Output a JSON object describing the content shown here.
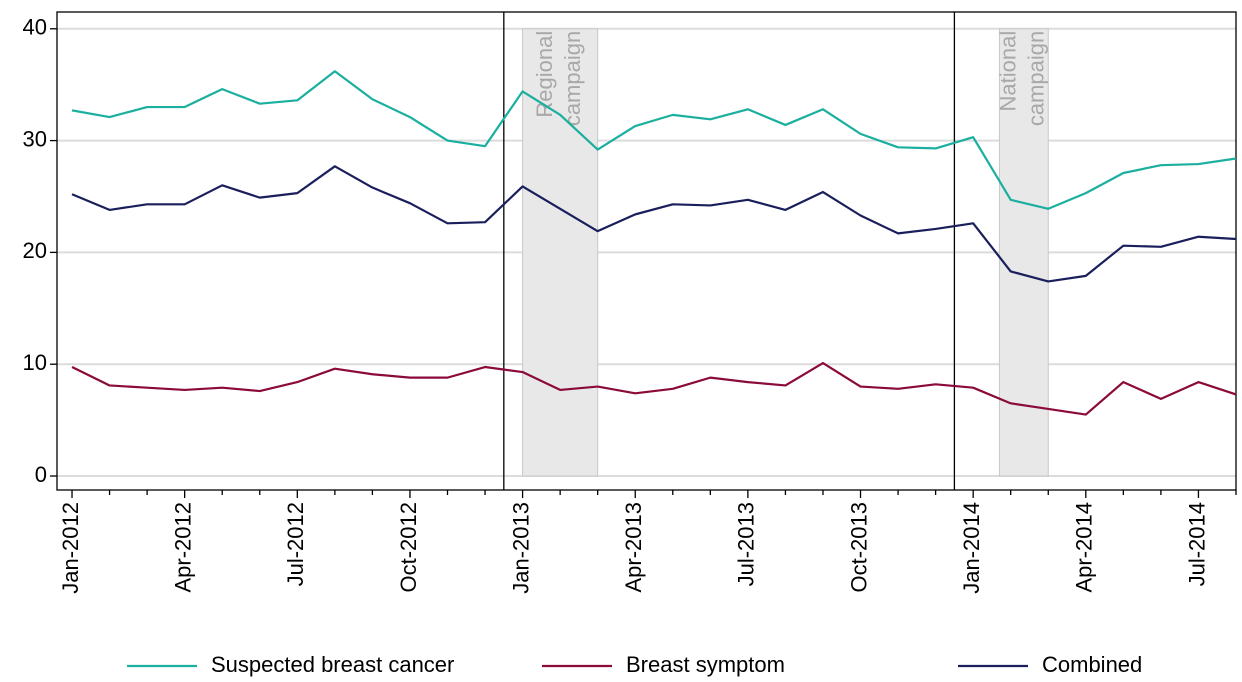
{
  "chart_data": {
    "type": "line",
    "categories": [
      "Jan-2012",
      null,
      null,
      "Apr-2012",
      null,
      null,
      "Jul-2012",
      null,
      null,
      "Oct-2012",
      null,
      null,
      "Jan-2013",
      null,
      null,
      "Apr-2013",
      null,
      null,
      "Jul-2013",
      null,
      null,
      "Oct-2013",
      null,
      null,
      "Jan-2014",
      null,
      null,
      "Apr-2014",
      null,
      null,
      "Jul-2014",
      null
    ],
    "series": [
      {
        "name": "Suspected breast cancer",
        "color": "#1aaf9e",
        "values": [
          32.7,
          32.1,
          33.0,
          33.0,
          34.6,
          33.3,
          33.6,
          36.2,
          33.7,
          32.1,
          30.0,
          29.5,
          34.4,
          32.3,
          29.2,
          31.3,
          32.3,
          31.9,
          32.8,
          31.4,
          32.8,
          30.6,
          29.4,
          29.3,
          30.3,
          24.7,
          23.9,
          25.3,
          27.1,
          27.8,
          27.9,
          28.4
        ]
      },
      {
        "name": "Breast symptom",
        "color": "#8b0a3a",
        "values": [
          9.75,
          8.1,
          7.9,
          7.7,
          7.9,
          7.6,
          8.4,
          9.6,
          9.1,
          8.8,
          8.8,
          9.75,
          9.3,
          7.7,
          8.0,
          7.4,
          7.8,
          8.8,
          8.4,
          8.1,
          10.1,
          8.0,
          7.8,
          8.2,
          7.9,
          6.5,
          6.0,
          5.5,
          8.4,
          6.9,
          8.4,
          7.3
        ]
      },
      {
        "name": "Combined",
        "color": "#1a1f5c",
        "values": [
          25.2,
          23.8,
          24.3,
          24.3,
          26.0,
          24.9,
          25.3,
          27.7,
          25.8,
          24.4,
          22.6,
          22.7,
          25.9,
          23.9,
          21.9,
          23.4,
          24.3,
          24.2,
          24.7,
          23.8,
          25.4,
          23.3,
          21.7,
          22.1,
          22.6,
          18.3,
          17.4,
          17.9,
          20.6,
          20.5,
          21.4,
          21.2
        ]
      }
    ],
    "xlim": [
      -0.4,
      31.0
    ],
    "ylim": [
      -1.25,
      41.5
    ],
    "yticks": [
      0,
      10,
      20,
      30,
      40
    ],
    "grid": true,
    "vlines": [
      11.5,
      23.5
    ],
    "shaded_regions": [
      {
        "label": [
          "Regional",
          "campaign"
        ],
        "start": 12,
        "end": 14,
        "ymin": 0,
        "ymax": 40
      },
      {
        "label": [
          "National",
          "campaign"
        ],
        "start": 24.7,
        "end": 26,
        "ymin": 0,
        "ymax": 40
      }
    ],
    "legend": "bottom"
  }
}
